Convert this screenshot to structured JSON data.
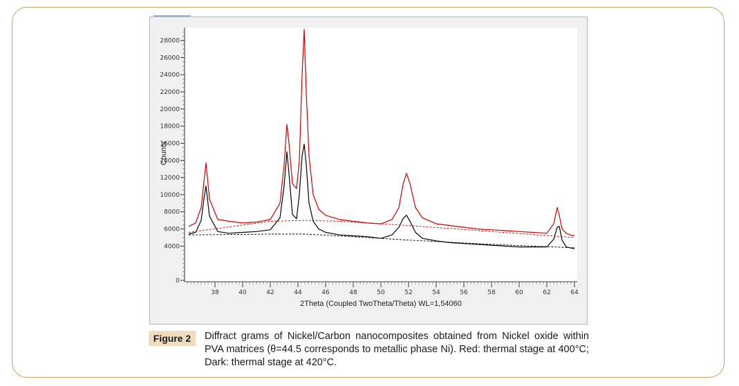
{
  "caption": {
    "tag": "Figure 2",
    "text": "Diffract grams of Nickel/Carbon nanocomposites obtained from Nickel oxide within PVA matrices (θ=44.5 corresponds to metallic phase Ni). Red: thermal stage at 400°C; Dark: thermal stage at 420°C."
  },
  "chart_data": {
    "type": "line",
    "xlabel": "2Theta (Coupled TwoTheta/Theta) WL=1,54060",
    "ylabel": "Counts",
    "xlim": [
      35.8,
      64.2
    ],
    "ylim": [
      0,
      29500
    ],
    "xticks": [
      38,
      40,
      42,
      44,
      46,
      48,
      50,
      52,
      54,
      56,
      58,
      60,
      62,
      64
    ],
    "yticks": [
      0,
      4000,
      6000,
      8000,
      10000,
      12000,
      14000,
      16000,
      18000,
      20000,
      22000,
      24000,
      26000,
      28000
    ],
    "ytick_labels": [
      "0",
      "4000",
      "6000",
      "8000",
      "10000",
      "12000",
      "14000",
      "16000",
      "18000",
      "20000",
      "22000",
      "24000",
      "26000",
      "28000"
    ],
    "series": [
      {
        "name": "",
        "color": "#cc0000",
        "style": "solid",
        "x": [
          36.1,
          36.6,
          37.0,
          37.2,
          37.35,
          37.6,
          38.2,
          39,
          40,
          41,
          42,
          42.7,
          43.0,
          43.2,
          43.35,
          43.6,
          43.9,
          44.1,
          44.3,
          44.45,
          44.6,
          44.8,
          45.1,
          45.5,
          46,
          47,
          48,
          49,
          50,
          50.8,
          51.3,
          51.6,
          51.85,
          52.1,
          52.5,
          53,
          54,
          55,
          56,
          57,
          58,
          59,
          60,
          61,
          62,
          62.5,
          62.75,
          62.9,
          63.1,
          63.4,
          63.7,
          64.0
        ],
        "values": [
          6300,
          6700,
          8500,
          11500,
          13700,
          9500,
          7100,
          6900,
          6700,
          6800,
          7100,
          9000,
          13500,
          18200,
          16000,
          11300,
          10700,
          14000,
          24000,
          29300,
          22000,
          14500,
          10000,
          8300,
          7600,
          7100,
          6900,
          6700,
          6600,
          7100,
          8500,
          11200,
          12500,
          11300,
          8500,
          7300,
          6600,
          6400,
          6200,
          6000,
          5900,
          5800,
          5700,
          5600,
          5500,
          6600,
          8500,
          7600,
          6000,
          5500,
          5300,
          5200
        ]
      },
      {
        "name": "",
        "color": "#000000",
        "style": "solid",
        "x": [
          36.1,
          36.6,
          37.0,
          37.2,
          37.35,
          37.6,
          38.2,
          39,
          40,
          41,
          42,
          42.7,
          43.0,
          43.2,
          43.35,
          43.6,
          43.9,
          44.1,
          44.3,
          44.45,
          44.6,
          44.8,
          45.1,
          45.5,
          46,
          47,
          48,
          49,
          50,
          50.8,
          51.3,
          51.6,
          51.85,
          52.1,
          52.5,
          53,
          54,
          55,
          56,
          57,
          58,
          59,
          60,
          61,
          62,
          62.5,
          62.75,
          62.9,
          63.1,
          63.4,
          63.7,
          64.0
        ],
        "values": [
          5400,
          5600,
          7000,
          9500,
          11000,
          7500,
          5700,
          5500,
          5600,
          5700,
          5900,
          7300,
          11000,
          15000,
          12500,
          7700,
          7200,
          10000,
          14500,
          15900,
          13500,
          9000,
          6900,
          6000,
          5600,
          5300,
          5200,
          5100,
          4900,
          5300,
          6200,
          7200,
          7600,
          6900,
          5600,
          4900,
          4600,
          4400,
          4300,
          4200,
          4100,
          4000,
          3900,
          3900,
          3900,
          4800,
          6200,
          6300,
          4700,
          3900,
          3800,
          3700
        ]
      },
      {
        "name": "",
        "color": "#cc0000",
        "style": "dashed",
        "x": [
          36.1,
          42,
          44.5,
          47,
          52,
          58,
          64
        ],
        "values": [
          5600,
          6900,
          7000,
          6900,
          6400,
          5700,
          5000
        ]
      },
      {
        "name": "",
        "color": "#000000",
        "style": "dashed",
        "x": [
          36.1,
          42,
          44.5,
          48,
          52,
          58,
          64
        ],
        "values": [
          5300,
          5400,
          5400,
          5100,
          4700,
          4200,
          3800
        ]
      }
    ]
  }
}
